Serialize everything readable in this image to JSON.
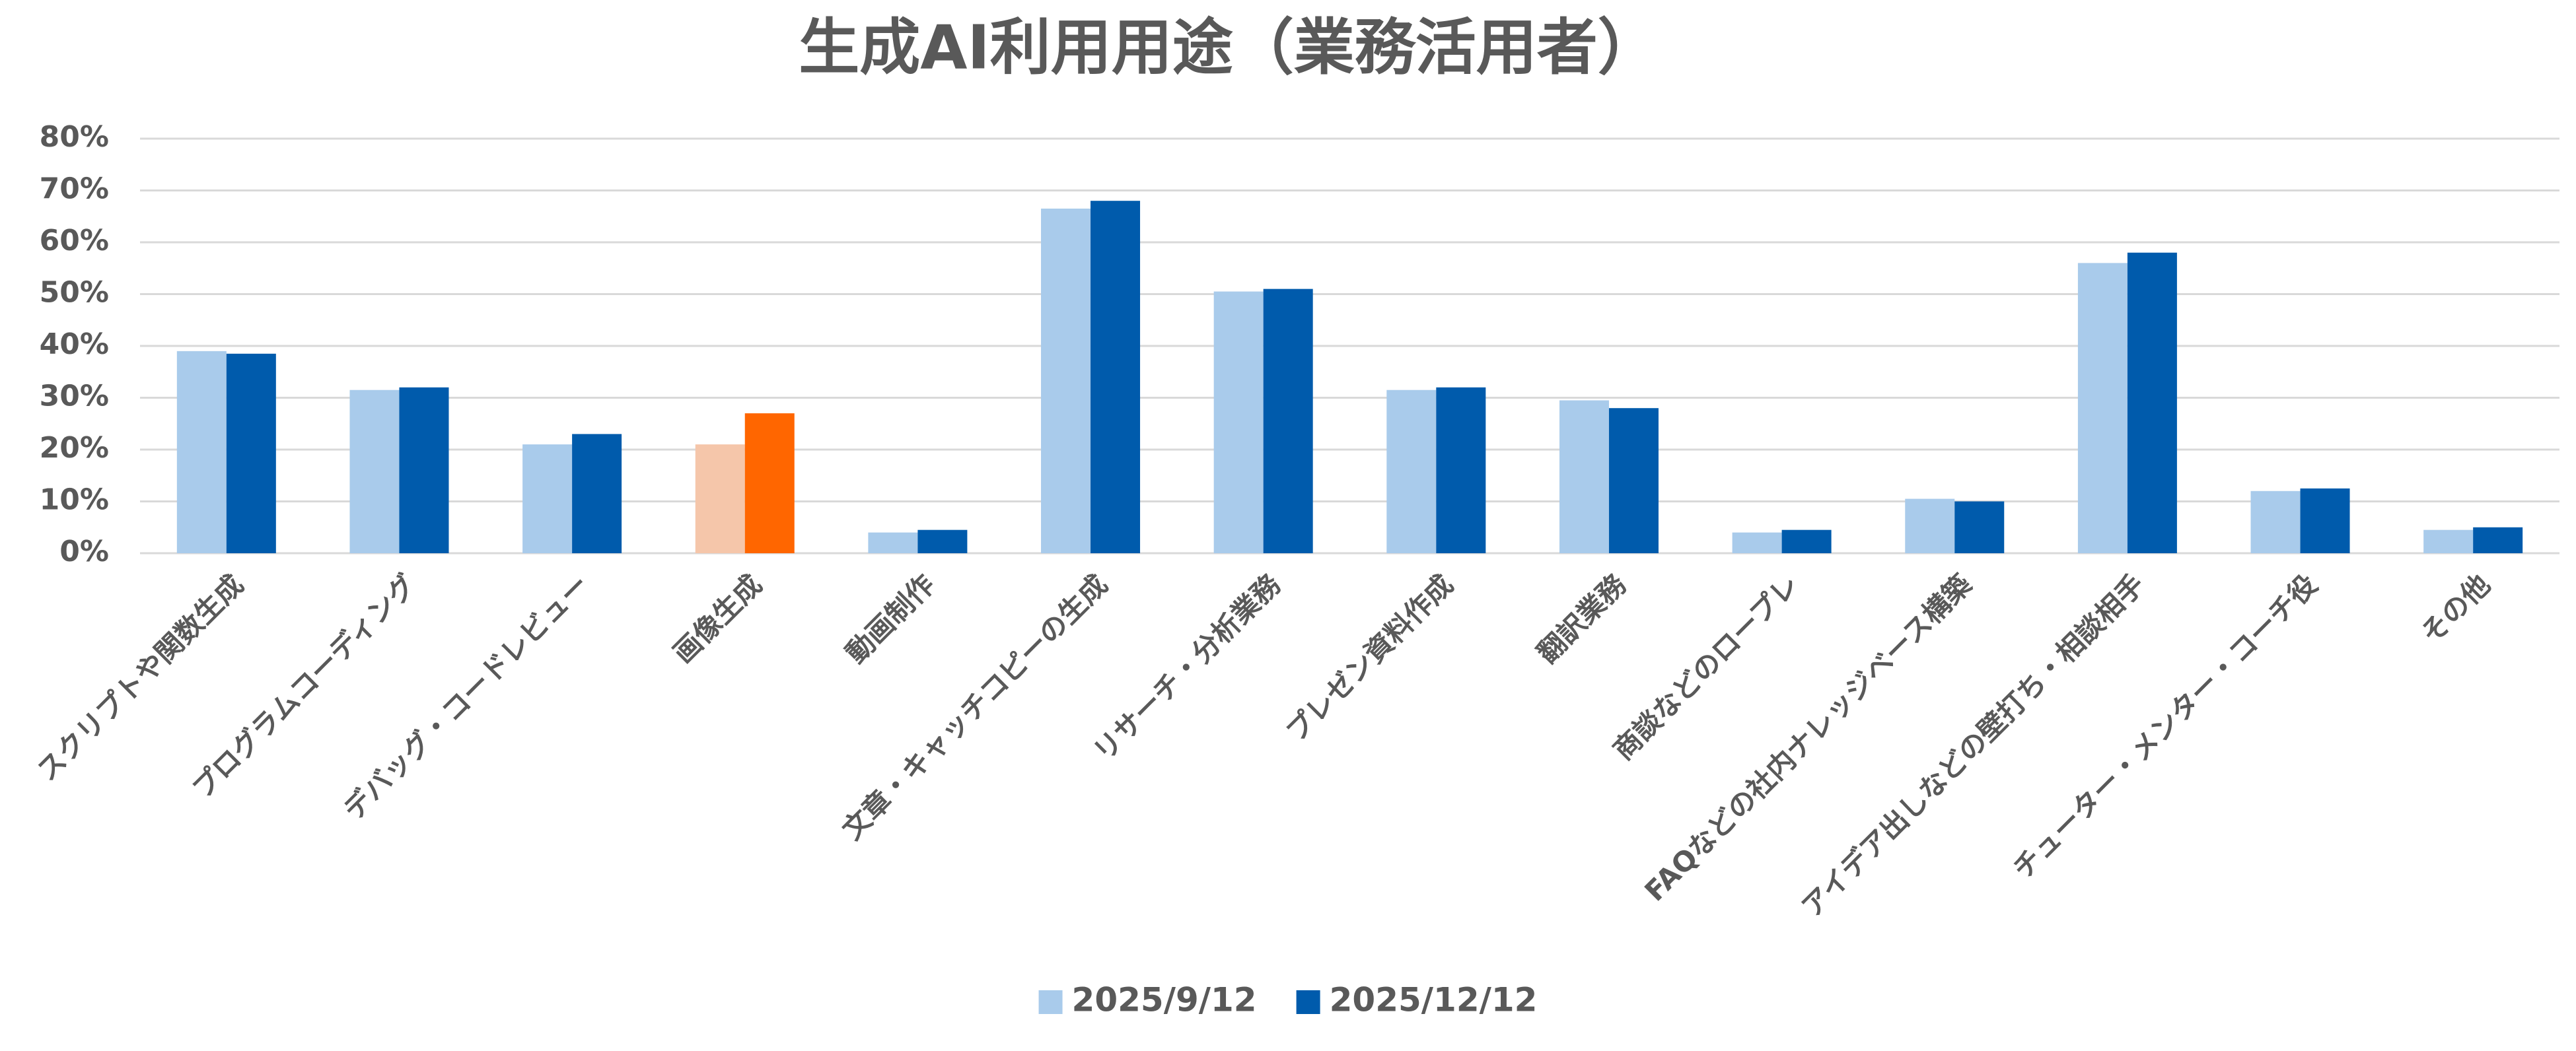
{
  "chart_data": {
    "type": "bar",
    "title": "生成AI利用用途（業務活用者）",
    "categories": [
      "スクリプトや関数生成",
      "プログラムコーディング",
      "デバッグ・コードレビュー",
      "画像生成",
      "動画制作",
      "文章・キャッチコピーの生成",
      "リサーチ・分析業務",
      "プレゼン資料作成",
      "翻訳業務",
      "商談などのロープレ",
      "FAQなどの社内ナレッジベース構築",
      "アイデア出しなどの壁打ち・相談相手",
      "チューター・メンター・コーチ役",
      "その他"
    ],
    "series": [
      {
        "name": "2025/9/12",
        "color": "#a9cbeb",
        "colors": [
          "#a9cbeb",
          "#a9cbeb",
          "#a9cbeb",
          "#f5c6aa",
          "#a9cbeb",
          "#a9cbeb",
          "#a9cbeb",
          "#a9cbeb",
          "#a9cbeb",
          "#a9cbeb",
          "#a9cbeb",
          "#a9cbeb",
          "#a9cbeb",
          "#a9cbeb"
        ],
        "values": [
          39,
          31.5,
          21,
          21,
          4,
          66.5,
          50.5,
          31.5,
          29.5,
          4,
          10.5,
          56,
          12,
          4.5
        ]
      },
      {
        "name": "2025/12/12",
        "color": "#005bac",
        "colors": [
          "#005bac",
          "#005bac",
          "#005bac",
          "#ff6600",
          "#005bac",
          "#005bac",
          "#005bac",
          "#005bac",
          "#005bac",
          "#005bac",
          "#005bac",
          "#005bac",
          "#005bac",
          "#005bac"
        ],
        "values": [
          38.5,
          32,
          23,
          27,
          4.5,
          68,
          51,
          32,
          28,
          4.5,
          10,
          58,
          12.5,
          5
        ]
      }
    ],
    "ylim": [
      0,
      80
    ],
    "yticks": [
      {
        "value": 0,
        "label": "0%"
      },
      {
        "value": 10,
        "label": "10%"
      },
      {
        "value": 20,
        "label": "20%"
      },
      {
        "value": 30,
        "label": "30%"
      },
      {
        "value": 40,
        "label": "40%"
      },
      {
        "value": 50,
        "label": "50%"
      },
      {
        "value": 60,
        "label": "60%"
      },
      {
        "value": 70,
        "label": "70%"
      },
      {
        "value": 80,
        "label": "80%"
      }
    ],
    "grid": true,
    "legend": "bottom"
  }
}
